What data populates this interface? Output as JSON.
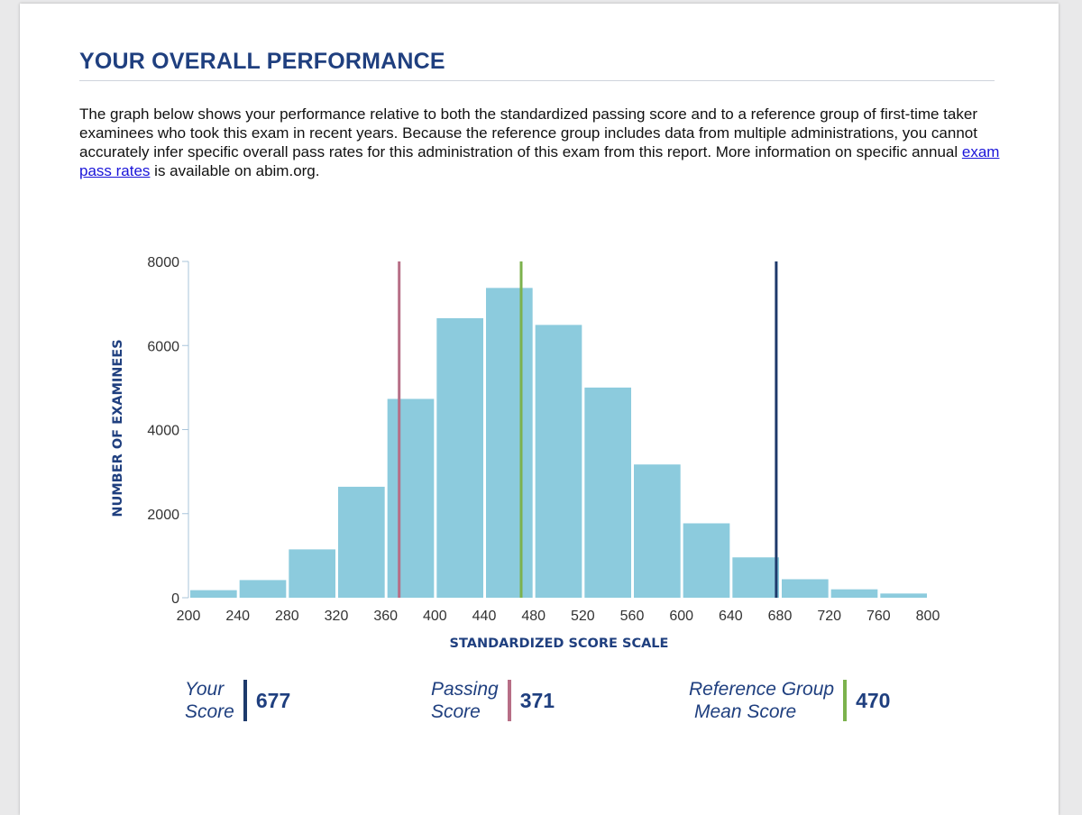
{
  "report": {
    "title": "YOUR OVERALL PERFORMANCE",
    "intro_part1": "The graph below shows your performance relative to both the standardized passing score and to a reference group of first-time taker examinees who took this exam in recent years. Because the reference group includes data from multiple administrations, you cannot accurately infer specific overall pass rates for this administration of this exam from this report. More information on specific annual ",
    "intro_link": "exam pass rates",
    "intro_part2": " is available on abim.org."
  },
  "legend": {
    "your_score": {
      "label_line1": "Your",
      "label_line2": "Score",
      "value": "677",
      "color": "#1e3a6b"
    },
    "passing_score": {
      "label_line1": "Passing",
      "label_line2": "Score",
      "value": "371",
      "color": "#b76e86"
    },
    "reference_group": {
      "label_line1": "Reference Group",
      "label_line2": "Mean Score",
      "value": "470",
      "color": "#7cb24d"
    }
  },
  "chart_data": {
    "type": "bar",
    "xlabel": "STANDARDIZED SCORE SCALE",
    "ylabel": "NUMBER OF EXAMINEES",
    "xlim": [
      200,
      800
    ],
    "ylim": [
      0,
      8000
    ],
    "xticks": [
      200,
      240,
      280,
      320,
      360,
      400,
      440,
      480,
      520,
      560,
      600,
      640,
      680,
      720,
      760,
      800
    ],
    "yticks": [
      0,
      2000,
      4000,
      6000,
      8000
    ],
    "bin_width": 40,
    "bins": [
      {
        "start": 200,
        "end": 240,
        "value": 180
      },
      {
        "start": 240,
        "end": 280,
        "value": 420
      },
      {
        "start": 280,
        "end": 320,
        "value": 1150
      },
      {
        "start": 320,
        "end": 360,
        "value": 2640
      },
      {
        "start": 360,
        "end": 400,
        "value": 4730
      },
      {
        "start": 400,
        "end": 440,
        "value": 6650
      },
      {
        "start": 440,
        "end": 480,
        "value": 7370
      },
      {
        "start": 480,
        "end": 520,
        "value": 6490
      },
      {
        "start": 520,
        "end": 560,
        "value": 5000
      },
      {
        "start": 560,
        "end": 600,
        "value": 3170
      },
      {
        "start": 600,
        "end": 640,
        "value": 1770
      },
      {
        "start": 640,
        "end": 680,
        "value": 960
      },
      {
        "start": 680,
        "end": 720,
        "value": 440
      },
      {
        "start": 720,
        "end": 760,
        "value": 200
      },
      {
        "start": 760,
        "end": 800,
        "value": 100
      }
    ],
    "bar_color": "#8ccbdd",
    "reference_lines": [
      {
        "label": "Passing Score",
        "x": 371,
        "color": "#b76e86"
      },
      {
        "label": "Reference Group Mean Score",
        "x": 470,
        "color": "#7cb24d"
      },
      {
        "label": "Your Score",
        "x": 677,
        "color": "#1e3a6b"
      }
    ],
    "grid": false
  }
}
